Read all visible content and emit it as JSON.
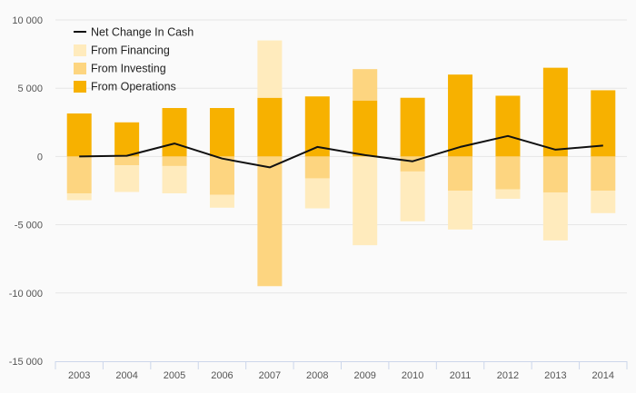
{
  "chart_data": {
    "type": "bar",
    "stacked": true,
    "title": "",
    "xlabel": "",
    "ylabel": "",
    "categories": [
      "2003",
      "2004",
      "2005",
      "2006",
      "2007",
      "2008",
      "2009",
      "2010",
      "2011",
      "2012",
      "2013",
      "2014"
    ],
    "ylim": [
      -15000,
      10000
    ],
    "yticks": [
      {
        "value": 10000,
        "label": "10 000"
      },
      {
        "value": 5000,
        "label": "5 000"
      },
      {
        "value": 0,
        "label": "0"
      },
      {
        "value": -5000,
        "label": "-5 000"
      },
      {
        "value": -10000,
        "label": "-10 000"
      },
      {
        "value": -15000,
        "label": "-15 000"
      }
    ],
    "grid": true,
    "legend_position": "top-left",
    "series": [
      {
        "name": "From Operations",
        "kind": "bar",
        "color": "#f7b100",
        "values": [
          3150,
          2500,
          3550,
          3550,
          4300,
          4400,
          4100,
          4300,
          6000,
          4450,
          6500,
          4850
        ]
      },
      {
        "name": "From Investing",
        "kind": "bar",
        "color": "#fdd580",
        "values": [
          -2700,
          -650,
          -700,
          -2800,
          -9500,
          -1600,
          2300,
          -1100,
          -2500,
          -2400,
          -2650,
          -2500
        ]
      },
      {
        "name": "From Financing",
        "kind": "bar",
        "color": "#ffebbd",
        "values": [
          -500,
          -1950,
          -2000,
          -950,
          4200,
          -2200,
          -6500,
          -3650,
          -2850,
          -700,
          -3500,
          -1650
        ]
      },
      {
        "name": "Net Change In Cash",
        "kind": "line",
        "color": "#111111",
        "values": [
          0,
          50,
          950,
          -150,
          -800,
          700,
          100,
          -350,
          700,
          1500,
          500,
          800
        ]
      }
    ],
    "legend_order": [
      "Net Change In Cash",
      "From Financing",
      "From Investing",
      "From Operations"
    ]
  }
}
